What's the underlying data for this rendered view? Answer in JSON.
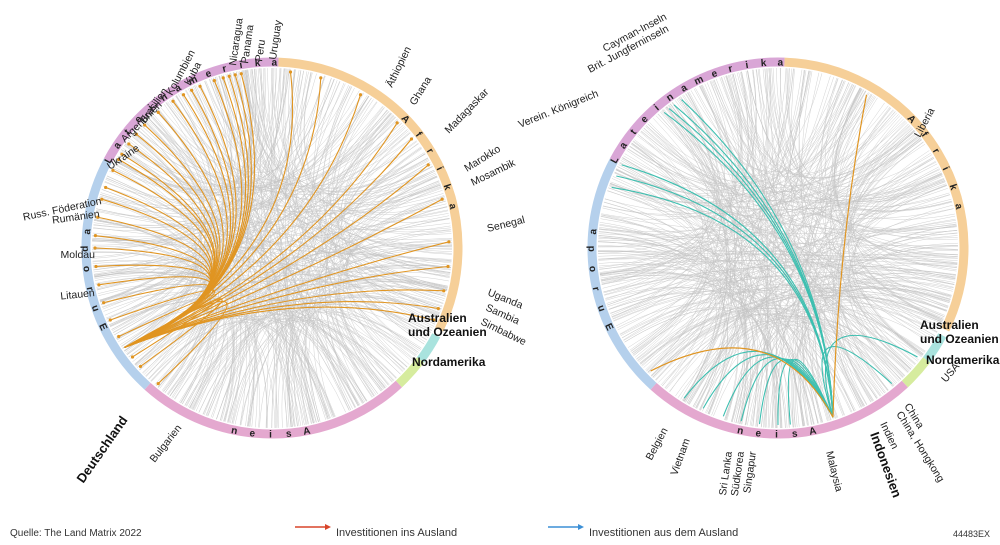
{
  "colors": {
    "lateinamerika": "#d9a6d6",
    "afrika": "#f6cf98",
    "australien": "#a9e3de",
    "nordamerika": "#d6ec9e",
    "asien": "#e4a8cf",
    "europa": "#b5d0ec",
    "grey": "#c4c4c4",
    "orange": "#e09522",
    "teal": "#3dbfb0",
    "legend_out": "#d8452a",
    "legend_in": "#3b8fd6"
  },
  "left": {
    "regions": {
      "lateinamerika": "Lateinamerika",
      "afrika": "Afrika",
      "europa": "Europa",
      "asien": "Asien",
      "australien": "Australien und Ozeanien",
      "nordamerika": "Nordamerika"
    },
    "bold": {
      "australien_1": "Australien",
      "australien_2": "und Ozeanien",
      "nordamerika": "Nordamerika",
      "home": "Deutschland"
    },
    "labels": [
      "Uruguay",
      "Peru",
      "Panama",
      "Nicaragua",
      "Kuba",
      "Kolumbien",
      "Brasilien",
      "Argentinien",
      "Ukraine",
      "Russ. Föderation",
      "Rumänien",
      "Moldau",
      "Litauen",
      "Bulgarien",
      "Äthiopien",
      "Ghana",
      "Madagaskar",
      "Marokko",
      "Mosambik",
      "Senegal",
      "Uganda",
      "Sambia",
      "Simbabwe"
    ]
  },
  "right": {
    "regions": {
      "lateinamerika": "Lateinamerika",
      "afrika": "Afrika",
      "europa": "Europa",
      "asien": "Asien",
      "australien": "Australien und Ozeanien",
      "nordamerika": "Nordamerika"
    },
    "bold": {
      "australien_1": "Australien",
      "australien_2": "und Ozeanien",
      "nordamerika": "Nordamerika",
      "home": "Indonesien"
    },
    "labels": [
      "Cayman-Inseln",
      "Brit. Jungferninseln",
      "Verein. Königreich",
      "Liberia",
      "USA",
      "China",
      "China, Hongkong",
      "Indien",
      "Malaysia",
      "Singapur",
      "Südkorea",
      "Sri Lanka",
      "Vietnam",
      "Belgien"
    ]
  },
  "footer": {
    "source": "Quelle: The Land Matrix 2022",
    "legend_out": "Investitionen ins Ausland",
    "legend_in": "Investitionen aus dem Ausland",
    "code": "44483EX"
  }
}
